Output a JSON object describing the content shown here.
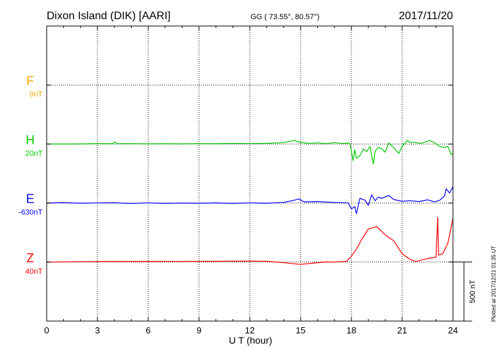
{
  "header": {
    "station": "Dixon Island (DIK)  [AARI]",
    "coords": "GG ( 73.55°,  80.57°)",
    "date": "2017/11/20"
  },
  "footer": {
    "plotted": "Plotted at 2017/12/21 01:35 UT"
  },
  "colors": {
    "F": "#f5a800",
    "H": "#00cc00",
    "E": "#0000ff",
    "Z": "#ff0000",
    "axis": "#000000",
    "grid": "#000000"
  },
  "chart_data": {
    "type": "line",
    "xlabel": "U T (hour)",
    "xlim": [
      0,
      24
    ],
    "xticks": [
      0,
      3,
      6,
      9,
      12,
      15,
      18,
      21,
      24
    ],
    "rows": 5,
    "scale": {
      "value": 500,
      "label": "500 nT"
    },
    "series": [
      {
        "name": "F",
        "offset": "0nT",
        "row": 1,
        "color_key": "F",
        "points": []
      },
      {
        "name": "H",
        "offset": "20nT",
        "row": 2,
        "color_key": "H",
        "points": [
          [
            0,
            0
          ],
          [
            1,
            0
          ],
          [
            2,
            1
          ],
          [
            3,
            4
          ],
          [
            3.9,
            3
          ],
          [
            4,
            18
          ],
          [
            4.15,
            3
          ],
          [
            5,
            4
          ],
          [
            6,
            2
          ],
          [
            7,
            3
          ],
          [
            8,
            2
          ],
          [
            9,
            4
          ],
          [
            10,
            3
          ],
          [
            11,
            5
          ],
          [
            12,
            4
          ],
          [
            13,
            6
          ],
          [
            14,
            12
          ],
          [
            14.6,
            30
          ],
          [
            15,
            14
          ],
          [
            15.5,
            6
          ],
          [
            16,
            10
          ],
          [
            16.5,
            3
          ],
          [
            17,
            12
          ],
          [
            17.5,
            4
          ],
          [
            17.9,
            9
          ],
          [
            18,
            -60
          ],
          [
            18.1,
            -140
          ],
          [
            18.2,
            -50
          ],
          [
            18.3,
            -120
          ],
          [
            18.5,
            -100
          ],
          [
            18.7,
            -40
          ],
          [
            18.9,
            -65
          ],
          [
            19.1,
            -20
          ],
          [
            19.3,
            -170
          ],
          [
            19.4,
            -60
          ],
          [
            19.6,
            -30
          ],
          [
            19.8,
            -40
          ],
          [
            20,
            -70
          ],
          [
            20.2,
            10
          ],
          [
            20.5,
            -30
          ],
          [
            20.8,
            -80
          ],
          [
            21,
            -20
          ],
          [
            21.3,
            30
          ],
          [
            21.5,
            12
          ],
          [
            21.8,
            15
          ],
          [
            22,
            4
          ],
          [
            22.4,
            18
          ],
          [
            22.6,
            30
          ],
          [
            22.9,
            12
          ],
          [
            23.2,
            -20
          ],
          [
            23.5,
            -30
          ],
          [
            23.7,
            -20
          ],
          [
            23.9,
            -90
          ],
          [
            24,
            -80
          ]
        ]
      },
      {
        "name": "E",
        "offset": "-630nT",
        "row": 3,
        "color_key": "E",
        "points": [
          [
            0,
            0
          ],
          [
            1,
            4
          ],
          [
            2,
            -2
          ],
          [
            3,
            2
          ],
          [
            4,
            3
          ],
          [
            5,
            -4
          ],
          [
            6,
            2
          ],
          [
            7,
            -3
          ],
          [
            8,
            0
          ],
          [
            9,
            -2
          ],
          [
            10,
            1
          ],
          [
            11,
            -3
          ],
          [
            12,
            2
          ],
          [
            13,
            -2
          ],
          [
            14,
            5
          ],
          [
            14.5,
            20
          ],
          [
            14.9,
            35
          ],
          [
            15.2,
            10
          ],
          [
            16,
            12
          ],
          [
            17,
            5
          ],
          [
            17.8,
            2
          ],
          [
            18,
            -50
          ],
          [
            18.2,
            -30
          ],
          [
            18.3,
            -90
          ],
          [
            18.5,
            40
          ],
          [
            18.8,
            25
          ],
          [
            19,
            -20
          ],
          [
            19.2,
            70
          ],
          [
            19.4,
            20
          ],
          [
            19.6,
            50
          ],
          [
            19.8,
            40
          ],
          [
            20.2,
            65
          ],
          [
            20.5,
            30
          ],
          [
            21,
            15
          ],
          [
            21.5,
            20
          ],
          [
            22,
            12
          ],
          [
            22.5,
            28
          ],
          [
            22.9,
            10
          ],
          [
            23.2,
            22
          ],
          [
            23.5,
            60
          ],
          [
            23.6,
            120
          ],
          [
            23.8,
            85
          ],
          [
            24,
            140
          ],
          [
            24,
            110
          ]
        ]
      },
      {
        "name": "Z",
        "offset": "40nT",
        "row": 4,
        "color_key": "Z",
        "points": [
          [
            0,
            0
          ],
          [
            2,
            3
          ],
          [
            4,
            5
          ],
          [
            6,
            5
          ],
          [
            8,
            6
          ],
          [
            10,
            7
          ],
          [
            12,
            8
          ],
          [
            13,
            7
          ],
          [
            14,
            -5
          ],
          [
            15,
            -20
          ],
          [
            15.7,
            -10
          ],
          [
            16.5,
            2
          ],
          [
            17,
            0
          ],
          [
            17.7,
            5
          ],
          [
            18,
            50
          ],
          [
            18.3,
            110
          ],
          [
            18.6,
            190
          ],
          [
            19,
            280
          ],
          [
            19.5,
            300
          ],
          [
            20,
            230
          ],
          [
            20.5,
            180
          ],
          [
            21,
            70
          ],
          [
            21.5,
            20
          ],
          [
            21.8,
            5
          ],
          [
            22.5,
            30
          ],
          [
            23,
            40
          ],
          [
            23.1,
            380
          ],
          [
            23.15,
            60
          ],
          [
            23.4,
            70
          ],
          [
            23.7,
            160
          ],
          [
            24,
            370
          ]
        ]
      }
    ]
  }
}
